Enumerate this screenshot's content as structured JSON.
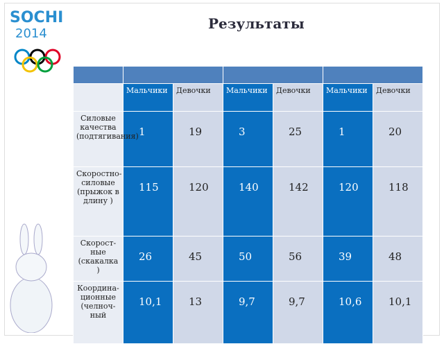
{
  "logo": {
    "name": "SOCHI",
    "year": "2014"
  },
  "title": "Результаты",
  "table": {
    "subheaders": [
      "Мальчики",
      "Девочки",
      "Мальчики",
      "Девочки",
      "Мальчики",
      "Девочки"
    ],
    "rows": [
      [
        "Силовые качества (подтягивания)",
        "1",
        "19",
        "3",
        "25",
        "1",
        "20"
      ],
      [
        "Скоростно-силовые (прыжок в длину )",
        "115",
        "120",
        "140",
        "142",
        "120",
        "118"
      ],
      [
        "Скорост-ные (скакалка )",
        "26",
        "45",
        "50",
        "56",
        "39",
        "48"
      ],
      [
        "Координа-ционные (челноч-ный",
        "10,1",
        "13",
        "9,7",
        "9,7",
        "10,6",
        "10,1"
      ]
    ]
  }
}
